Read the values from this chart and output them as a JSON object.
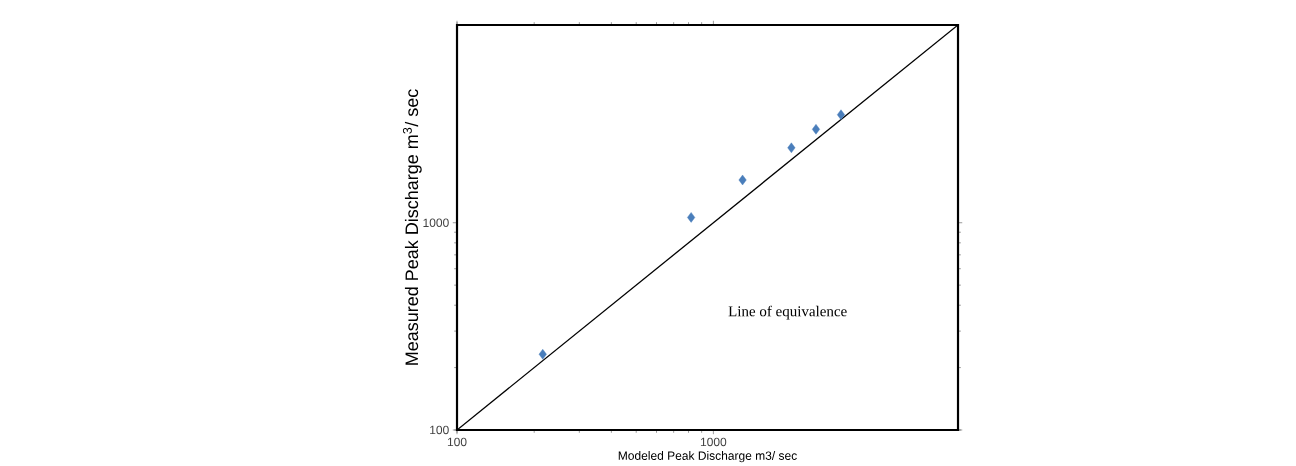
{
  "chart_data": {
    "type": "scatter",
    "xlabel": "Modeled Peak Discharge m3/ sec",
    "ylabel": "Measured Peak Discharge m$^{3}$/ sec",
    "log": "xy",
    "xlim": [
      100,
      9000
    ],
    "ylim": [
      100,
      9000
    ],
    "xticks": [
      100,
      1000
    ],
    "yticks": [
      100,
      1000
    ],
    "marker": "diamond",
    "series": [
      {
        "color": "#4a7ebb",
        "x": [
          216,
          819,
          1300,
          2015,
          2513,
          3146
        ],
        "values": [
          232,
          1061,
          1608,
          2300,
          2825,
          3321
        ]
      },
      {
        "type": "line",
        "name": "Line of equivalence",
        "color": "#000000",
        "line_style": "solid",
        "marker": "none",
        "x": [
          100,
          9000
        ],
        "values": [
          100,
          9000
        ]
      }
    ]
  }
}
